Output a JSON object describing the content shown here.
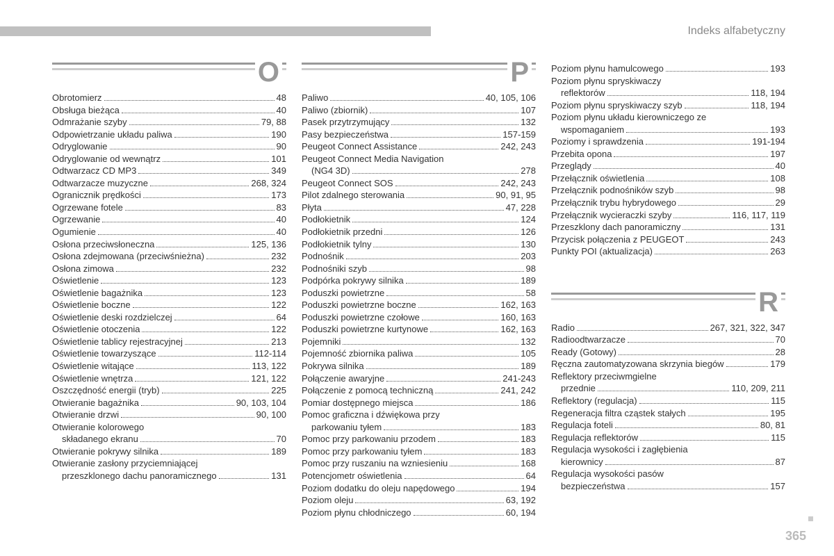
{
  "header": {
    "title": "Indeks alfabetyczny",
    "page_number": "365"
  },
  "colors": {
    "bar": "#c0c0c0",
    "letter": "#999999",
    "text": "#333333",
    "muted": "#888888"
  },
  "typography": {
    "entry_fontsize": 13,
    "letter_fontsize": 40,
    "header_fontsize": 16
  },
  "sections": [
    {
      "letter": "O",
      "column": 0,
      "entries": [
        {
          "label": "Obrotomierz",
          "page": "48"
        },
        {
          "label": "Obsługa bieżąca",
          "page": "40"
        },
        {
          "label": "Odmrażanie szyby",
          "page": "79, 88"
        },
        {
          "label": "Odpowietrzanie układu paliwa",
          "page": "190"
        },
        {
          "label": "Odryglowanie",
          "page": "90"
        },
        {
          "label": "Odryglowanie od wewnątrz",
          "page": "101"
        },
        {
          "label": "Odtwarzacz CD MP3",
          "page": "349"
        },
        {
          "label": "Odtwarzacze muzyczne",
          "page": "268, 324"
        },
        {
          "label": "Ogranicznik prędkości",
          "page": "173"
        },
        {
          "label": "Ogrzewane fotele",
          "page": "83"
        },
        {
          "label": "Ogrzewanie",
          "page": "40"
        },
        {
          "label": "Ogumienie",
          "page": "40"
        },
        {
          "label": "Osłona przeciwsłoneczna",
          "page": "125, 136"
        },
        {
          "label": "Osłona zdejmowana (przeciwśnieżna)",
          "page": "232"
        },
        {
          "label": "Osłona zimowa",
          "page": "232"
        },
        {
          "label": "Oświetlenie",
          "page": "123"
        },
        {
          "label": "Oświetlenie bagażnika",
          "page": "123"
        },
        {
          "label": "Oświetlenie boczne",
          "page": "122"
        },
        {
          "label": "Oświetlenie deski rozdzielczej",
          "page": "64"
        },
        {
          "label": "Oświetlenie otoczenia",
          "page": "122"
        },
        {
          "label": "Oświetlenie tablicy rejestracyjnej",
          "page": "213"
        },
        {
          "label": "Oświetlenie towarzyszące",
          "page": "112-114"
        },
        {
          "label": "Oświetlenie witające",
          "page": "113, 122"
        },
        {
          "label": "Oświetlenie wnętrza",
          "page": "121, 122"
        },
        {
          "label": "Oszczędność energii (tryb)",
          "page": "225"
        },
        {
          "label": "Otwieranie bagażnika",
          "page": "90, 103, 104"
        },
        {
          "label": "Otwieranie drzwi",
          "page": "90, 100"
        },
        {
          "label": "Otwieranie kolorowego",
          "page": ""
        },
        {
          "label": "składanego ekranu",
          "page": "70",
          "cont": true
        },
        {
          "label": "Otwieranie pokrywy silnika",
          "page": "189"
        },
        {
          "label": "Otwieranie zasłony przyciemniającej",
          "page": ""
        },
        {
          "label": "przeszklonego dachu panoramicznego",
          "page": "131",
          "cont": true
        }
      ]
    },
    {
      "letter": "P",
      "column": 1,
      "entries": [
        {
          "label": "Paliwo",
          "page": "40, 105, 106"
        },
        {
          "label": "Paliwo (zbiornik)",
          "page": "107"
        },
        {
          "label": "Pasek przytrzymujący",
          "page": "132"
        },
        {
          "label": "Pasy bezpieczeństwa",
          "page": "157-159"
        },
        {
          "label": "Peugeot Connect Assistance",
          "page": "242, 243"
        },
        {
          "label": "Peugeot Connect Media Navigation",
          "page": ""
        },
        {
          "label": "(NG4 3D)",
          "page": "278",
          "cont": true
        },
        {
          "label": "Peugeot Connect SOS",
          "page": "242, 243"
        },
        {
          "label": "Pilot zdalnego sterowania",
          "page": "90, 91, 95"
        },
        {
          "label": "Płyta",
          "page": "47, 228"
        },
        {
          "label": "Podłokietnik",
          "page": "124"
        },
        {
          "label": "Podłokietnik przedni",
          "page": "126"
        },
        {
          "label": "Podłokietnik tylny",
          "page": "130"
        },
        {
          "label": "Podnośnik",
          "page": "203"
        },
        {
          "label": "Podnośniki szyb",
          "page": "98"
        },
        {
          "label": "Podpórka pokrywy silnika",
          "page": "189"
        },
        {
          "label": "Poduszki powietrzne",
          "page": "58"
        },
        {
          "label": "Poduszki powietrzne boczne",
          "page": "162, 163"
        },
        {
          "label": "Poduszki powietrzne czołowe",
          "page": "160, 163"
        },
        {
          "label": "Poduszki powietrzne kurtynowe",
          "page": "162, 163"
        },
        {
          "label": "Pojemniki",
          "page": "132"
        },
        {
          "label": "Pojemność zbiornika paliwa",
          "page": "105"
        },
        {
          "label": "Pokrywa silnika",
          "page": "189"
        },
        {
          "label": "Połączenie awaryjne",
          "page": "241-243"
        },
        {
          "label": "Połączenie z pomocą techniczną",
          "page": "241, 242"
        },
        {
          "label": "Pomiar dostępnego miejsca",
          "page": "186"
        },
        {
          "label": "Pomoc graficzna i dźwiękowa przy",
          "page": ""
        },
        {
          "label": "parkowaniu tyłem",
          "page": "183",
          "cont": true
        },
        {
          "label": "Pomoc przy parkowaniu przodem",
          "page": "183"
        },
        {
          "label": "Pomoc przy parkowaniu tyłem",
          "page": "183"
        },
        {
          "label": "Pomoc przy ruszaniu na wzniesieniu",
          "page": "168"
        },
        {
          "label": "Potencjometr oświetlenia",
          "page": "64"
        },
        {
          "label": "Poziom dodatku do oleju napędowego",
          "page": "194"
        },
        {
          "label": "Poziom oleju",
          "page": "63, 192"
        },
        {
          "label": "Poziom płynu chłodniczego",
          "page": "60, 194"
        }
      ]
    },
    {
      "letter": "",
      "column": 2,
      "no_header": true,
      "entries": [
        {
          "label": "Poziom płynu hamulcowego",
          "page": "193"
        },
        {
          "label": "Poziom płynu spryskiwaczy",
          "page": ""
        },
        {
          "label": "reflektorów",
          "page": "118, 194",
          "cont": true
        },
        {
          "label": "Poziom płynu spryskiwaczy szyb",
          "page": "118, 194"
        },
        {
          "label": "Poziom płynu układu kierowniczego ze",
          "page": ""
        },
        {
          "label": "wspomaganiem",
          "page": "193",
          "cont": true
        },
        {
          "label": "Poziomy i sprawdzenia",
          "page": "191-194"
        },
        {
          "label": "Przebita opona",
          "page": "197"
        },
        {
          "label": "Przeglądy",
          "page": "40"
        },
        {
          "label": "Przełącznik oświetlenia",
          "page": "108"
        },
        {
          "label": "Przełącznik podnośników szyb",
          "page": "98"
        },
        {
          "label": "Przełącznik trybu hybrydowego",
          "page": "29"
        },
        {
          "label": "Przełącznik wycieraczki szyby",
          "page": "116, 117, 119"
        },
        {
          "label": "Przeszklony dach panoramiczny",
          "page": "131"
        },
        {
          "label": "Przycisk połączenia z PEUGEOT",
          "page": "243"
        },
        {
          "label": "Punkty POI (aktualizacja)",
          "page": "263"
        }
      ]
    },
    {
      "letter": "R",
      "column": 2,
      "entries": [
        {
          "label": "Radio",
          "page": "267, 321, 322, 347"
        },
        {
          "label": "Radioodtwarzacze",
          "page": "70"
        },
        {
          "label": "Ready (Gotowy)",
          "page": "28"
        },
        {
          "label": "Ręczna zautomatyzowana skrzynia biegów",
          "page": "179"
        },
        {
          "label": "Reflektory przeciwmgielne",
          "page": ""
        },
        {
          "label": "przednie",
          "page": "110, 209, 211",
          "cont": true
        },
        {
          "label": "Reflektory (regulacja)",
          "page": "115"
        },
        {
          "label": "Regeneracja filtra cząstek stałych",
          "page": "195"
        },
        {
          "label": "Regulacja foteli",
          "page": "80, 81"
        },
        {
          "label": "Regulacja reflektorów",
          "page": "115"
        },
        {
          "label": "Regulacja wysokości i zagłębienia",
          "page": ""
        },
        {
          "label": "kierownicy",
          "page": "87",
          "cont": true
        },
        {
          "label": "Regulacja wysokości pasów",
          "page": ""
        },
        {
          "label": "bezpieczeństwa",
          "page": "157",
          "cont": true
        }
      ]
    }
  ]
}
